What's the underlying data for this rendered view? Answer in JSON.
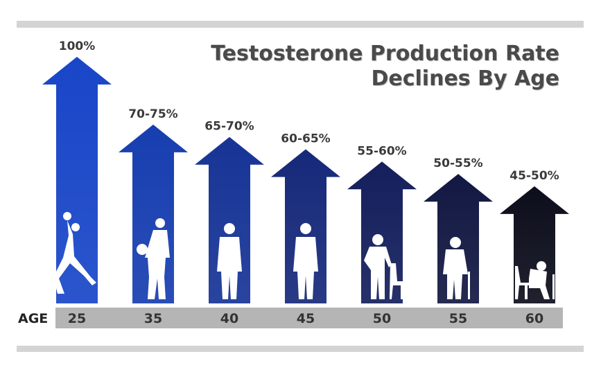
{
  "chart_data": {
    "type": "bar",
    "title": [
      "Testosterone Production Rate",
      "Declines By Age"
    ],
    "xlabel": "AGE",
    "categories": [
      "25",
      "35",
      "40",
      "45",
      "50",
      "55",
      "60"
    ],
    "labels": [
      "100%",
      "70-75%",
      "65-70%",
      "60-65%",
      "55-60%",
      "50-55%",
      "45-50%"
    ],
    "values": [
      100,
      72.5,
      67.5,
      62.5,
      57.5,
      52.5,
      47.5
    ],
    "ylim": [
      0,
      100
    ],
    "colors": [
      "#1946c8",
      "#173eb0",
      "#173496",
      "#16297a",
      "#141f5c",
      "#121842",
      "#0d0e1c"
    ],
    "silhouettes": [
      "dunking-player-icon",
      "basketball-player-icon",
      "standing-man-icon",
      "standing-man-icon",
      "man-leaning-on-chair-icon",
      "man-with-cane-icon",
      "seated-elderly-man-icon"
    ]
  }
}
